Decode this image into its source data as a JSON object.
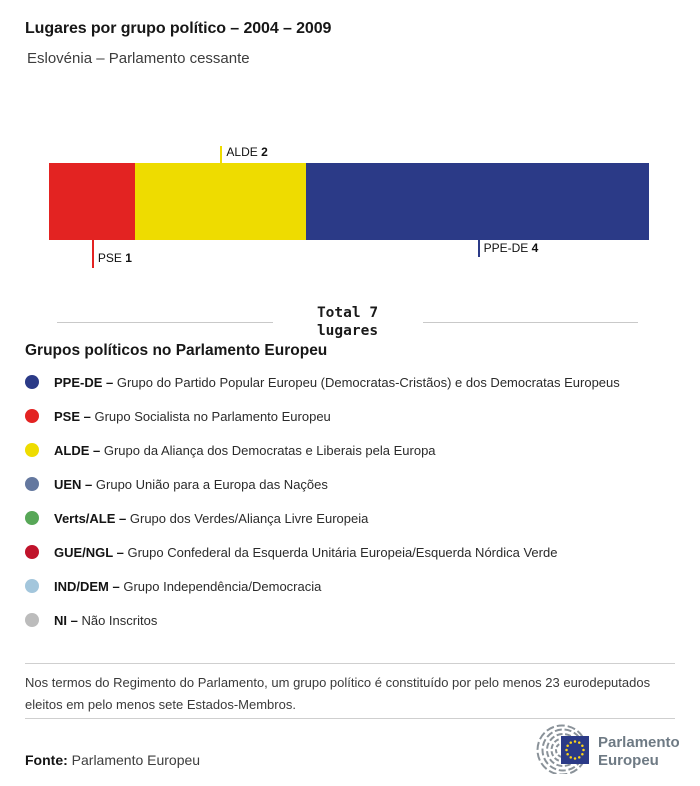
{
  "header": {
    "title": "Lugares por grupo político – 2004 – 2009",
    "subtitle": "Eslovénia – Parlamento cessante"
  },
  "chart_data": {
    "type": "bar",
    "variant": "horizontal-stacked",
    "title": "Lugares por grupo político – 2004 – 2009",
    "subtitle": "Eslovénia – Parlamento cessante",
    "total": 7,
    "total_label": "Total 7 lugares",
    "segments": [
      {
        "group": "PSE",
        "seats": 1,
        "color": "#e32322",
        "label_placement": "below_far"
      },
      {
        "group": "ALDE",
        "seats": 2,
        "color": "#eedc00",
        "label_placement": "above"
      },
      {
        "group": "PPE-DE",
        "seats": 4,
        "color": "#2b3a87",
        "label_placement": "below"
      }
    ]
  },
  "legend": {
    "heading": "Grupos políticos no Parlamento Europeu",
    "separator": " – ",
    "items": [
      {
        "name": "PPE-DE",
        "description": "Grupo do Partido Popular Europeu (Democratas-Cristãos) e dos Democratas Europeus",
        "color": "#2b3a87"
      },
      {
        "name": "PSE",
        "description": "Grupo Socialista no Parlamento Europeu",
        "color": "#e32322"
      },
      {
        "name": "ALDE",
        "description": "Grupo da Aliança dos Democratas e Liberais pela Europa",
        "color": "#eedc00"
      },
      {
        "name": "UEN",
        "description": "Grupo União para a Europa das Nações",
        "color": "#64789f"
      },
      {
        "name": "Verts/ALE",
        "description": "Grupo dos Verdes/Aliança Livre Europeia",
        "color": "#57a757"
      },
      {
        "name": "GUE/NGL",
        "description": "Grupo Confederal da Esquerda Unitária Europeia/Esquerda Nórdica Verde",
        "color": "#c0132b"
      },
      {
        "name": "IND/DEM",
        "description": "Grupo Independência/Democracia",
        "color": "#a3c6dc"
      },
      {
        "name": "NI",
        "description": "Não Inscritos",
        "color": "#bcbcbc"
      }
    ]
  },
  "footnote": {
    "text": "Nos termos do Regimento do Parlamento, um grupo político é constituído por pelo menos 23 eurodeputados eleitos em pelo menos sete Estados-Membros."
  },
  "source": {
    "label": "Fonte:",
    "value": "Parlamento Europeu"
  },
  "logo": {
    "line1": "Parlamento",
    "line2": "Europeu",
    "flag_color": "#2b3a87",
    "star_color": "#ffd617"
  }
}
